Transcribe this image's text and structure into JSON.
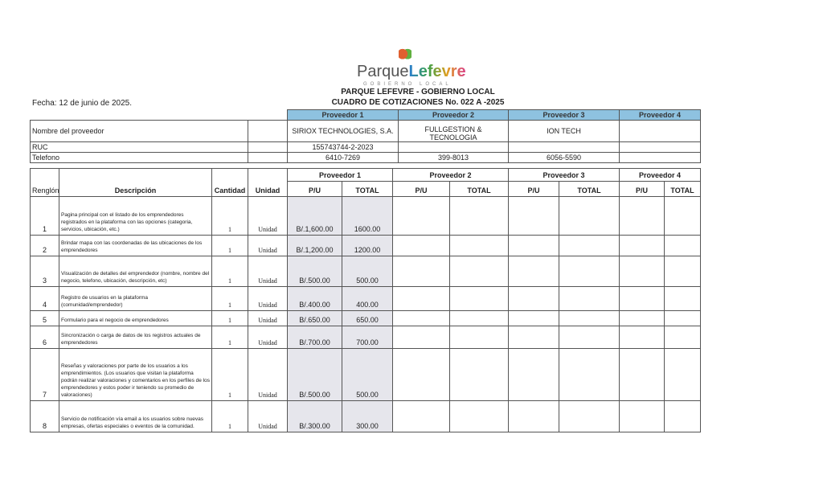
{
  "header": {
    "logo_text": [
      "Parque",
      "Lefevre"
    ],
    "logo_sub": "GOBIERNO LOCAL",
    "org": "PARQUE LEFEVRE - GOBIERNO LOCAL",
    "title": "CUADRO DE COTIZACIONES No. 022 A -2025",
    "date": "Fecha: 12 de junio de 2025."
  },
  "providers_table": {
    "headers": [
      "Proveedor 1",
      "Proveedor 2",
      "Proveedor 3",
      "Proveedor 4"
    ],
    "rows": [
      {
        "label": "Nombre del proveedor",
        "values": [
          "SIRIOX TECHNOLOGIES, S.A.",
          "FULLGESTION & TECNOLOGIA",
          "ION TECH",
          ""
        ]
      },
      {
        "label": "RUC",
        "values": [
          "155743744-2-2023",
          "",
          "",
          ""
        ]
      },
      {
        "label": "Telefono",
        "values": [
          "6410-7269",
          "399-8013",
          "6056-5590",
          ""
        ]
      }
    ]
  },
  "quote_table": {
    "col_headers": {
      "renglon": "Renglón",
      "descripcion": "Descripción",
      "cantidad": "Cantidad",
      "unidad": "Unidad",
      "pu": "P/U",
      "total": "TOTAL"
    },
    "providers": [
      "Proveedor 1",
      "Proveedor 2",
      "Proveedor 3",
      "Proveedor 4"
    ],
    "rows": [
      {
        "n": "1",
        "desc": "Pagina principal con el listado de los emprendedores registrados en la plataforma con las opciones (categoria, servicios, ubicación, etc.)",
        "qty": "1",
        "unit": "Unidad",
        "pu": "B/.1,600.00",
        "total": "1600.00"
      },
      {
        "n": "2",
        "desc": "Brindar mapa con las coordenadas de las ubicaciones de los emprendedores",
        "qty": "1",
        "unit": "Unidad",
        "pu": "B/.1,200.00",
        "total": "1200.00"
      },
      {
        "n": "3",
        "desc": "Visualización de detalles del emprendedor (nombre, nombre del negocio, telefono, ubicación, descripción, etc)",
        "qty": "1",
        "unit": "Unidad",
        "pu": "B/.500.00",
        "total": "500.00"
      },
      {
        "n": "4",
        "desc": "Registro de usuarios en la plataforma (comunidad/emprendedor)",
        "qty": "1",
        "unit": "Unidad",
        "pu": "B/.400.00",
        "total": "400.00"
      },
      {
        "n": "5",
        "desc": "Formulario para el negocio de emprendedores",
        "qty": "1",
        "unit": "Unidad",
        "pu": "B/.650.00",
        "total": "650.00"
      },
      {
        "n": "6",
        "desc": "Sincronización o carga de datos de los registros actuales de emprendedores",
        "qty": "1",
        "unit": "Unidad",
        "pu": "B/.700.00",
        "total": "700.00"
      },
      {
        "n": "7",
        "desc": "Reseñas y valoraciones por parte de los usuarios a los emprendimientos. (Los usuarios que visitan la plataforma podrán realizar valoraciones y comentarios en los perfiles de los emprendedores y estos poder ir teniendo su promedio de valoraciones)",
        "qty": "1",
        "unit": "Unidad",
        "pu": "B/.500.00",
        "total": "500.00"
      },
      {
        "n": "8",
        "desc": "Servicio de notificación vía email a los usuarios sobre nuevas empresas, ofertas especiales o eventos de la comunidad.",
        "qty": "1",
        "unit": "Unidad",
        "pu": "B/.300.00",
        "total": "300.00"
      }
    ]
  }
}
